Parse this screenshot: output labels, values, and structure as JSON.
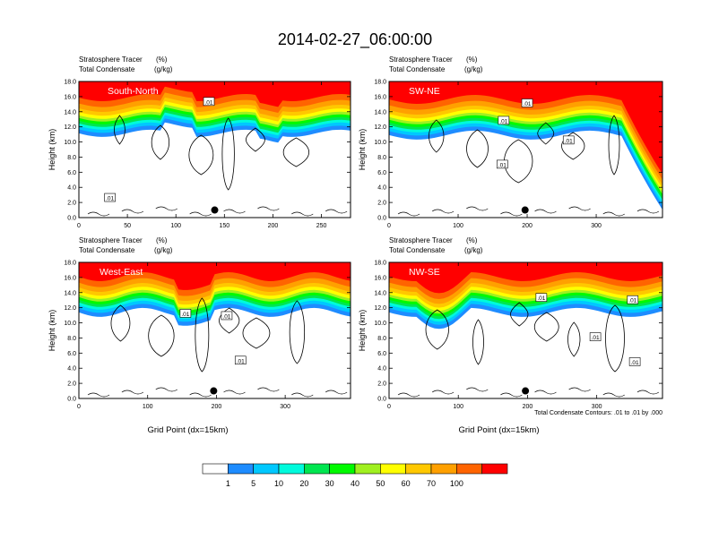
{
  "figure": {
    "title": "2014-02-27_06:00:00",
    "contour_info": "Total Condensate Contours: .01 to .01 by .000"
  },
  "colorbar": {
    "labels": [
      "1",
      "5",
      "10",
      "20",
      "30",
      "40",
      "50",
      "60",
      "70",
      "100"
    ],
    "colors": [
      "#ffffff",
      "#1e8cff",
      "#00c8ff",
      "#00fadc",
      "#00e650",
      "#00fa00",
      "#a0f020",
      "#ffff00",
      "#ffc800",
      "#ffa000",
      "#ff6400",
      "#ff0000"
    ]
  },
  "chart_data": [
    {
      "type": "heatmap",
      "title": "South-North",
      "left_title": "Stratosphere Tracer",
      "left_title_units": "(%)",
      "left_subtitle": "Total Condensate",
      "left_subtitle_units": "(g/kg)",
      "ylabel": "Height (km)",
      "xlabel": "",
      "xlim": [
        0,
        280
      ],
      "ylim": [
        0,
        18
      ],
      "xticks": [
        "0",
        "50",
        "100",
        "150",
        "200",
        "250"
      ],
      "xtick_values": [
        0,
        50,
        100,
        150,
        200,
        250
      ],
      "yticks": [
        "0.0",
        "2.0",
        "4.0",
        "6.0",
        "8.0",
        "10.0",
        "12.0",
        "14.0",
        "16.0",
        "18.0"
      ],
      "contour_labels": [
        {
          "text": ".01",
          "x": 134,
          "y": 15.3
        },
        {
          "text": ".01",
          "x": 32,
          "y": 2.6
        }
      ],
      "marker": {
        "x": 140,
        "y": 1.0
      }
    },
    {
      "type": "heatmap",
      "title": "SW-NE",
      "left_title": "Stratosphere Tracer",
      "left_title_units": "(%)",
      "left_subtitle": "Total Condensate",
      "left_subtitle_units": "(g/kg)",
      "ylabel": "Height (km)",
      "xlabel": "",
      "xlim": [
        0,
        396
      ],
      "ylim": [
        0,
        18
      ],
      "xticks": [
        "0",
        "100",
        "200",
        "300"
      ],
      "xtick_values": [
        0,
        100,
        200,
        300
      ],
      "yticks": [
        "0.0",
        "2.0",
        "4.0",
        "6.0",
        "8.0",
        "10.0",
        "12.0",
        "14.0",
        "16.0",
        "18.0"
      ],
      "contour_labels": [
        {
          "text": ".01",
          "x": 200,
          "y": 15.1
        },
        {
          "text": ".01",
          "x": 166,
          "y": 12.8
        },
        {
          "text": ".01",
          "x": 260,
          "y": 10.2
        },
        {
          "text": ".01",
          "x": 164,
          "y": 7.0
        }
      ],
      "marker": {
        "x": 197,
        "y": 1.0
      }
    },
    {
      "type": "heatmap",
      "title": "West-East",
      "left_title": "Stratosphere Tracer",
      "left_title_units": "(%)",
      "left_subtitle": "Total Condensate",
      "left_subtitle_units": "(g/kg)",
      "ylabel": "Height (km)",
      "xlabel": "Grid Point (dx=15km)",
      "xlim": [
        0,
        395
      ],
      "ylim": [
        0,
        18
      ],
      "xticks": [
        "0",
        "100",
        "200",
        "300"
      ],
      "xtick_values": [
        0,
        100,
        200,
        300
      ],
      "yticks": [
        "0.0",
        "2.0",
        "4.0",
        "6.0",
        "8.0",
        "10.0",
        "12.0",
        "14.0",
        "16.0",
        "18.0"
      ],
      "contour_labels": [
        {
          "text": ".01",
          "x": 155,
          "y": 11.2
        },
        {
          "text": ".01",
          "x": 215,
          "y": 10.9
        },
        {
          "text": ".01",
          "x": 235,
          "y": 5.0
        }
      ],
      "marker": {
        "x": 196,
        "y": 1.0
      }
    },
    {
      "type": "heatmap",
      "title": "NW-SE",
      "left_title": "Stratosphere Tracer",
      "left_title_units": "(%)",
      "left_subtitle": "Total Condensate",
      "left_subtitle_units": "(g/kg)",
      "ylabel": "Height (km)",
      "xlabel": "Grid Point (dx=15km)",
      "xlim": [
        0,
        395
      ],
      "ylim": [
        0,
        18
      ],
      "xticks": [
        "0",
        "100",
        "200",
        "300"
      ],
      "xtick_values": [
        0,
        100,
        200,
        300
      ],
      "yticks": [
        "0.0",
        "2.0",
        "4.0",
        "6.0",
        "8.0",
        "10.0",
        "12.0",
        "14.0",
        "16.0",
        "18.0"
      ],
      "contour_labels": [
        {
          "text": ".01",
          "x": 220,
          "y": 13.3
        },
        {
          "text": ".01",
          "x": 352,
          "y": 13.0
        },
        {
          "text": ".01",
          "x": 298,
          "y": 8.1
        },
        {
          "text": ".01",
          "x": 355,
          "y": 4.8
        }
      ],
      "marker": {
        "x": 197,
        "y": 1.0
      }
    }
  ]
}
